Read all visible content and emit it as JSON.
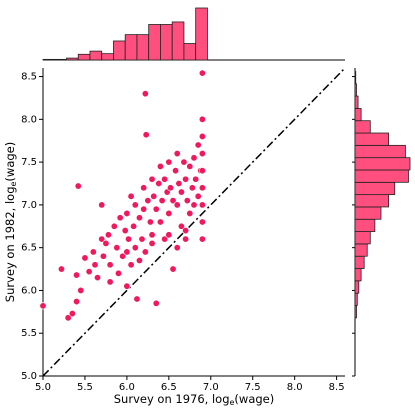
{
  "chart_data": {
    "type": "scatter",
    "xlabel": [
      "Survey on 1976, log",
      "e",
      "(wage)"
    ],
    "ylabel": [
      "Survey on 1982, log",
      "e",
      "(wage)"
    ],
    "color": "#f0195e",
    "hist_color": "#ff4f7e",
    "x": [
      5.0,
      5.22,
      5.3,
      5.35,
      5.4,
      5.4,
      5.42,
      5.45,
      5.5,
      5.55,
      5.6,
      5.62,
      5.65,
      5.7,
      5.7,
      5.72,
      5.75,
      5.78,
      5.8,
      5.85,
      5.88,
      5.9,
      5.92,
      5.95,
      5.98,
      6.0,
      6.0,
      6.02,
      6.05,
      6.05,
      6.08,
      6.1,
      6.1,
      6.12,
      6.15,
      6.18,
      6.2,
      6.2,
      6.22,
      6.22,
      6.23,
      6.25,
      6.28,
      6.3,
      6.3,
      6.32,
      6.35,
      6.35,
      6.38,
      6.4,
      6.4,
      6.42,
      6.45,
      6.45,
      6.48,
      6.5,
      6.5,
      6.52,
      6.55,
      6.55,
      6.58,
      6.6,
      6.6,
      6.62,
      6.65,
      6.65,
      6.68,
      6.7,
      6.7,
      6.72,
      6.75,
      6.75,
      6.78,
      6.8,
      6.8,
      6.82,
      6.85,
      6.85,
      6.88,
      6.9,
      6.9,
      6.9,
      6.9,
      6.9,
      6.9,
      6.9,
      6.9,
      6.9,
      6.6,
      6.3,
      6.0,
      5.8,
      6.15,
      6.5,
      6.7
    ],
    "y": [
      5.82,
      6.25,
      5.68,
      5.73,
      5.87,
      6.18,
      7.22,
      6.0,
      6.38,
      6.22,
      6.45,
      6.3,
      6.15,
      6.6,
      7.0,
      6.4,
      6.55,
      6.65,
      6.3,
      6.75,
      6.5,
      6.2,
      6.85,
      6.4,
      6.7,
      6.05,
      6.9,
      6.6,
      6.3,
      7.1,
      6.75,
      6.5,
      7.0,
      5.9,
      6.85,
      6.6,
      7.2,
      6.95,
      6.45,
      8.3,
      7.82,
      7.05,
      6.8,
      7.3,
      6.65,
      7.1,
      6.95,
      5.85,
      7.25,
      6.8,
      7.45,
      7.05,
      6.6,
      7.3,
      7.15,
      6.9,
      7.5,
      7.2,
      6.25,
      7.05,
      7.4,
      7.0,
      7.6,
      7.25,
      6.75,
      7.15,
      7.5,
      6.7,
      7.3,
      7.05,
      7.45,
      6.9,
      7.2,
      7.0,
      7.55,
      7.3,
      7.1,
      7.7,
      7.4,
      6.6,
      6.8,
      7.0,
      7.2,
      7.4,
      7.6,
      7.8,
      8.0,
      8.54,
      6.5,
      6.55,
      6.45,
      6.1,
      6.35,
      6.65,
      6.6
    ],
    "xlim": [
      5.0,
      8.6
    ],
    "ylim": [
      5.0,
      8.6
    ],
    "xticks": [
      {
        "value": 5.0,
        "label": "5.0"
      },
      {
        "value": 5.5,
        "label": "5.5"
      },
      {
        "value": 6.0,
        "label": "6.0"
      },
      {
        "value": 6.5,
        "label": "6.5"
      },
      {
        "value": 7.0,
        "label": "7.0"
      },
      {
        "value": 7.5,
        "label": "7.5"
      },
      {
        "value": 8.0,
        "label": "8.0"
      },
      {
        "value": 8.5,
        "label": "8.5"
      }
    ],
    "yticks": [
      {
        "value": 5.0,
        "label": "5.0"
      },
      {
        "value": 5.5,
        "label": "5.5"
      },
      {
        "value": 6.0,
        "label": "6.0"
      },
      {
        "value": 6.5,
        "label": "6.5"
      },
      {
        "value": 7.0,
        "label": "7.0"
      },
      {
        "value": 7.5,
        "label": "7.5"
      },
      {
        "value": 8.0,
        "label": "8.0"
      },
      {
        "value": 8.5,
        "label": "8.5"
      }
    ],
    "reference_line": {
      "x": [
        5.0,
        8.6
      ],
      "y": [
        5.0,
        8.6
      ],
      "color": "#000000"
    },
    "marginal_x": {
      "bins": [
        5.0,
        5.14,
        5.28,
        5.42,
        5.56,
        5.7,
        5.84,
        5.98,
        6.12,
        6.26,
        6.4,
        6.54,
        6.68,
        6.82,
        6.96
      ],
      "counts": [
        1,
        1,
        3,
        9,
        14,
        10,
        30,
        40,
        40,
        56,
        56,
        60,
        26,
        82
      ]
    },
    "marginal_y": {
      "bins": [
        5.68,
        5.824,
        5.968,
        6.112,
        6.256,
        6.4,
        6.544,
        6.688,
        6.832,
        6.976,
        7.12,
        7.264,
        7.408,
        7.552,
        7.696,
        7.84,
        7.984,
        8.128,
        8.272,
        8.416,
        8.56
      ],
      "counts": [
        2,
        3,
        5,
        8,
        12,
        16,
        20,
        26,
        34,
        44,
        52,
        70,
        72,
        66,
        44,
        20,
        8,
        4,
        2,
        1
      ]
    }
  }
}
